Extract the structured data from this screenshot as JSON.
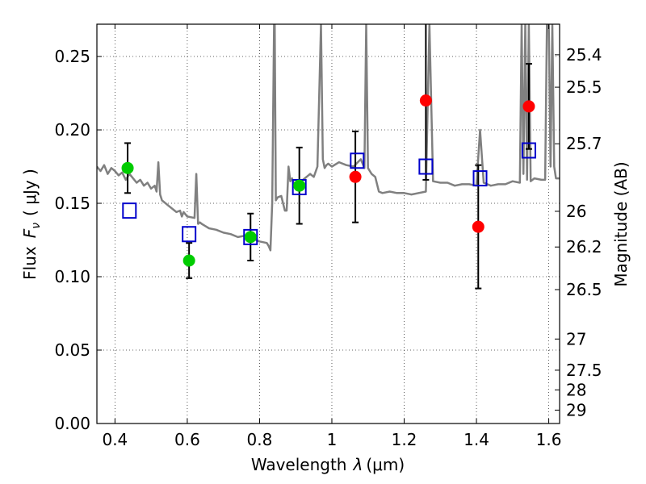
{
  "chart_data": {
    "type": "scatter",
    "xlabel_prefix": "Wavelength",
    "xlabel_symbol": "λ",
    "xlabel_unit": "(μm)",
    "ylabel_prefix": "Flux",
    "ylabel_symbol": "F",
    "ylabel_sub": "ν",
    "ylabel_unit": "( μJy )",
    "y2label": "Magnitude (AB)",
    "xlim": [
      0.35,
      1.63
    ],
    "ylim": [
      0.0,
      0.272
    ],
    "grid": true,
    "x_ticks": [
      0.4,
      0.6,
      0.8,
      1.0,
      1.2,
      1.4,
      1.6
    ],
    "x_tick_labels": [
      "0.4",
      "0.6",
      "0.8",
      "1",
      "1.2",
      "1.4",
      "1.6"
    ],
    "y_ticks": [
      0.0,
      0.05,
      0.1,
      0.15,
      0.2,
      0.25
    ],
    "y_tick_labels": [
      "0.00",
      "0.05",
      "0.10",
      "0.15",
      "0.20",
      "0.25"
    ],
    "mag_ticks": [
      {
        "label": "25.4",
        "mag": 25.4
      },
      {
        "label": "25.5",
        "mag": 25.5
      },
      {
        "label": "25.7",
        "mag": 25.7
      },
      {
        "label": "26",
        "mag": 26.0
      },
      {
        "label": "26.2",
        "mag": 26.2
      },
      {
        "label": "26.5",
        "mag": 26.5
      },
      {
        "label": "27",
        "mag": 27.0
      },
      {
        "label": "27.5",
        "mag": 27.5
      },
      {
        "label": "28",
        "mag": 28.0
      },
      {
        "label": "29",
        "mag": 29.0
      }
    ],
    "spectrum": {
      "color": "#808080",
      "x": [
        0.35,
        0.36,
        0.37,
        0.38,
        0.39,
        0.4,
        0.41,
        0.42,
        0.43,
        0.44,
        0.45,
        0.46,
        0.47,
        0.48,
        0.49,
        0.5,
        0.51,
        0.515,
        0.52,
        0.525,
        0.53,
        0.55,
        0.57,
        0.58,
        0.585,
        0.59,
        0.6,
        0.62,
        0.625,
        0.63,
        0.635,
        0.64,
        0.66,
        0.68,
        0.7,
        0.72,
        0.74,
        0.76,
        0.78,
        0.8,
        0.82,
        0.825,
        0.83,
        0.835,
        0.84,
        0.842,
        0.845,
        0.85,
        0.86,
        0.87,
        0.875,
        0.88,
        0.885,
        0.89,
        0.9,
        0.92,
        0.94,
        0.95,
        0.96,
        0.97,
        0.975,
        0.98,
        0.985,
        0.99,
        1.0,
        1.02,
        1.04,
        1.06,
        1.08,
        1.09,
        1.095,
        1.1,
        1.11,
        1.12,
        1.13,
        1.14,
        1.16,
        1.18,
        1.2,
        1.22,
        1.24,
        1.26,
        1.27,
        1.28,
        1.3,
        1.32,
        1.34,
        1.36,
        1.38,
        1.4,
        1.41,
        1.42,
        1.44,
        1.46,
        1.48,
        1.5,
        1.52,
        1.525,
        1.53,
        1.535,
        1.54,
        1.545,
        1.55,
        1.56,
        1.58,
        1.59,
        1.595,
        1.6,
        1.605,
        1.61,
        1.615,
        1.62,
        1.63
      ],
      "y": [
        0.175,
        0.172,
        0.176,
        0.17,
        0.174,
        0.172,
        0.169,
        0.171,
        0.166,
        0.17,
        0.167,
        0.164,
        0.166,
        0.162,
        0.164,
        0.16,
        0.162,
        0.158,
        0.178,
        0.156,
        0.152,
        0.148,
        0.144,
        0.145,
        0.141,
        0.144,
        0.141,
        0.14,
        0.17,
        0.136,
        0.137,
        0.136,
        0.133,
        0.132,
        0.13,
        0.129,
        0.127,
        0.128,
        0.126,
        0.124,
        0.123,
        0.121,
        0.118,
        0.15,
        0.272,
        0.272,
        0.152,
        0.154,
        0.155,
        0.145,
        0.145,
        0.175,
        0.165,
        0.167,
        0.16,
        0.166,
        0.17,
        0.168,
        0.175,
        0.272,
        0.18,
        0.174,
        0.176,
        0.177,
        0.175,
        0.178,
        0.176,
        0.175,
        0.18,
        0.174,
        0.272,
        0.174,
        0.17,
        0.168,
        0.158,
        0.157,
        0.158,
        0.157,
        0.157,
        0.156,
        0.157,
        0.158,
        0.272,
        0.165,
        0.164,
        0.164,
        0.162,
        0.163,
        0.163,
        0.162,
        0.2,
        0.164,
        0.162,
        0.163,
        0.163,
        0.165,
        0.164,
        0.272,
        0.17,
        0.272,
        0.166,
        0.272,
        0.165,
        0.167,
        0.166,
        0.166,
        0.272,
        0.272,
        0.175,
        0.272,
        0.175,
        0.167,
        0.167
      ]
    },
    "model_points": {
      "color": "#0000cc",
      "x": [
        0.44,
        0.605,
        0.775,
        0.91,
        1.07,
        1.26,
        1.41,
        1.545
      ],
      "y": [
        0.145,
        0.129,
        0.127,
        0.161,
        0.179,
        0.175,
        0.167,
        0.186
      ]
    },
    "detections": {
      "color": "#00cc00",
      "x": [
        0.435,
        0.605,
        0.775,
        0.91
      ],
      "y": [
        0.174,
        0.111,
        0.127,
        0.162
      ],
      "err": [
        0.017,
        0.012,
        0.016,
        0.026
      ]
    },
    "upper_points": {
      "color": "#ff0000",
      "x": [
        1.065,
        1.26,
        1.405,
        1.545
      ],
      "y": [
        0.168,
        0.22,
        0.134,
        0.216
      ],
      "err": [
        0.031,
        0.054,
        0.042,
        0.029
      ]
    }
  }
}
